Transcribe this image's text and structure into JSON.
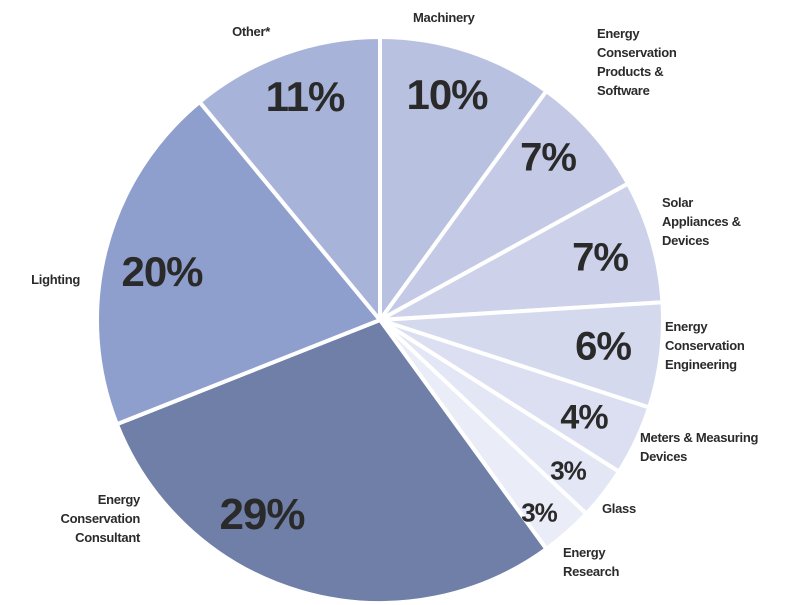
{
  "chart_data": {
    "type": "pie",
    "categories": [
      "Machinery",
      "Energy Conservation Products & Software",
      "Solar Appliances & Devices",
      "Energy Conservation Engineering",
      "Meters & Measuring Devices",
      "Glass",
      "Energy Research",
      "Energy Conservation Consultant",
      "Lighting",
      "Other*"
    ],
    "values": [
      10,
      7,
      7,
      6,
      4,
      3,
      3,
      29,
      20,
      11
    ],
    "value_labels": [
      "10%",
      "7%",
      "7%",
      "6%",
      "4%",
      "3%",
      "3%",
      "29%",
      "20%",
      "11%"
    ],
    "colors": [
      "#b9c1e1",
      "#c4cae6",
      "#cdd2ea",
      "#d5d9ee",
      "#dcdff1",
      "#e3e6f4",
      "#eaecf7",
      "#6f7fa7",
      "#8e9fcd",
      "#a8b3da"
    ]
  }
}
